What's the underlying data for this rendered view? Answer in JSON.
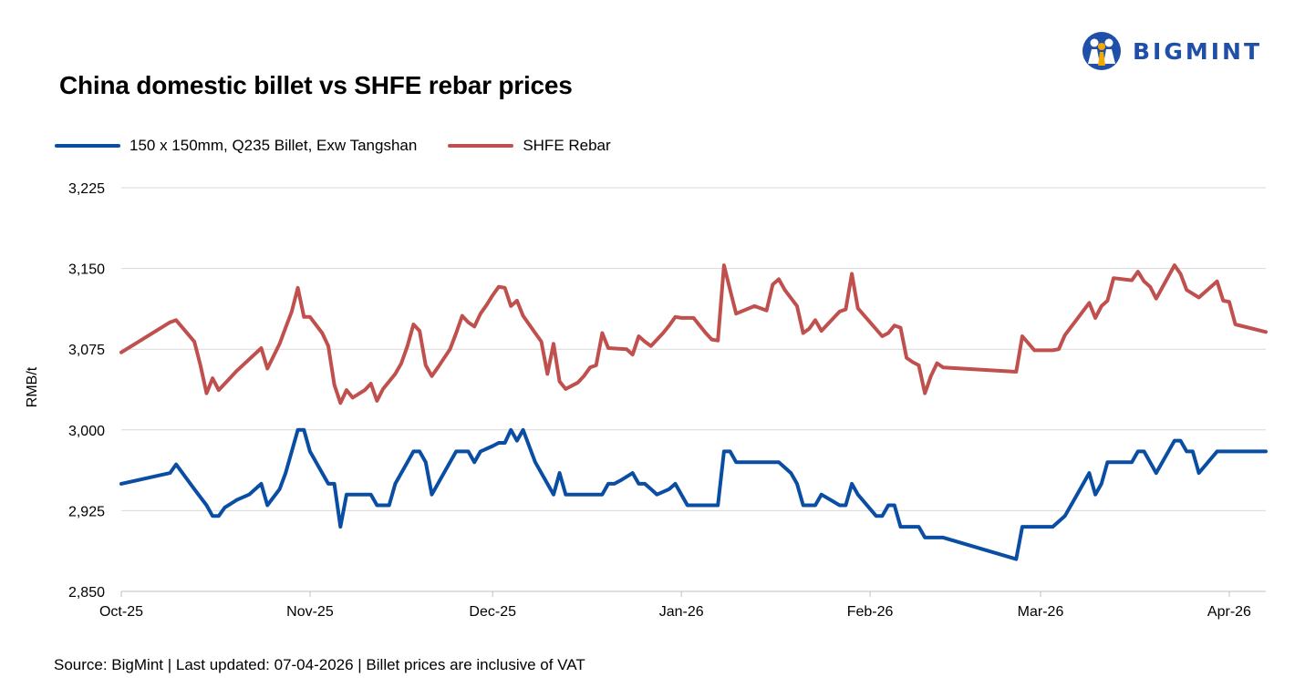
{
  "header": {
    "title": "China domestic billet vs SHFE rebar prices",
    "logo_text": "BIGMINT"
  },
  "legend": {
    "items": [
      {
        "label": "150 x 150mm, Q235 Billet, Exw Tangshan",
        "color": "#0a4ea3"
      },
      {
        "label": "SHFE Rebar",
        "color": "#c0504d"
      }
    ]
  },
  "footer": {
    "source": "Source: BigMint | Last updated: 07-04-2026 | Billet prices are inclusive of VAT"
  },
  "colors": {
    "billet": "#0a4ea3",
    "rebar": "#c0504d",
    "brand": "#1f4fa8",
    "grid": "#d9d9d9"
  },
  "chart_data": {
    "type": "line",
    "ylabel": "RMB/t",
    "xlabel": "",
    "ylim": [
      2850,
      3225
    ],
    "yticks": [
      2850,
      2925,
      3000,
      3075,
      3150,
      3225
    ],
    "ytick_labels": [
      "2,850",
      "2,925",
      "3,000",
      "3,075",
      "3,150",
      "3,225"
    ],
    "xlim": [
      "2025-10-01",
      "2026-04-07"
    ],
    "xticks": [
      "2025-10-01",
      "2025-11-01",
      "2025-12-01",
      "2026-01-01",
      "2026-02-01",
      "2026-03-01",
      "2026-04-01"
    ],
    "xtick_labels": [
      "Oct-25",
      "Nov-25",
      "Dec-25",
      "Jan-26",
      "Feb-26",
      "Mar-26",
      "Apr-26"
    ],
    "grid": true,
    "legend_position": "top-left",
    "series": [
      {
        "name": "150 x 150mm, Q235 Billet, Exw Tangshan",
        "color": "#0a4ea3",
        "points": [
          [
            "2025-10-01",
            2950
          ],
          [
            "2025-10-09",
            2960
          ],
          [
            "2025-10-10",
            2968
          ],
          [
            "2025-10-13",
            2945
          ],
          [
            "2025-10-15",
            2930
          ],
          [
            "2025-10-16",
            2920
          ],
          [
            "2025-10-17",
            2920
          ],
          [
            "2025-10-18",
            2928
          ],
          [
            "2025-10-20",
            2935
          ],
          [
            "2025-10-22",
            2940
          ],
          [
            "2025-10-24",
            2950
          ],
          [
            "2025-10-25",
            2930
          ],
          [
            "2025-10-27",
            2945
          ],
          [
            "2025-10-28",
            2960
          ],
          [
            "2025-10-29",
            2980
          ],
          [
            "2025-10-30",
            3000
          ],
          [
            "2025-10-31",
            3000
          ],
          [
            "2025-11-01",
            2980
          ],
          [
            "2025-11-03",
            2960
          ],
          [
            "2025-11-04",
            2950
          ],
          [
            "2025-11-05",
            2950
          ],
          [
            "2025-11-06",
            2910
          ],
          [
            "2025-11-07",
            2940
          ],
          [
            "2025-11-10",
            2940
          ],
          [
            "2025-11-11",
            2940
          ],
          [
            "2025-11-12",
            2930
          ],
          [
            "2025-11-14",
            2930
          ],
          [
            "2025-11-15",
            2950
          ],
          [
            "2025-11-17",
            2970
          ],
          [
            "2025-11-18",
            2980
          ],
          [
            "2025-11-19",
            2980
          ],
          [
            "2025-11-20",
            2970
          ],
          [
            "2025-11-21",
            2940
          ],
          [
            "2025-11-24",
            2970
          ],
          [
            "2025-11-25",
            2980
          ],
          [
            "2025-11-27",
            2980
          ],
          [
            "2025-11-28",
            2970
          ],
          [
            "2025-11-29",
            2980
          ],
          [
            "2025-12-01",
            2985
          ],
          [
            "2025-12-02",
            2988
          ],
          [
            "2025-12-03",
            2988
          ],
          [
            "2025-12-04",
            3000
          ],
          [
            "2025-12-05",
            2990
          ],
          [
            "2025-12-06",
            3000
          ],
          [
            "2025-12-08",
            2970
          ],
          [
            "2025-12-10",
            2950
          ],
          [
            "2025-12-11",
            2940
          ],
          [
            "2025-12-12",
            2960
          ],
          [
            "2025-12-13",
            2940
          ],
          [
            "2025-12-15",
            2940
          ],
          [
            "2025-12-18",
            2940
          ],
          [
            "2025-12-19",
            2940
          ],
          [
            "2025-12-20",
            2950
          ],
          [
            "2025-12-21",
            2950
          ],
          [
            "2025-12-22",
            2953
          ],
          [
            "2025-12-24",
            2960
          ],
          [
            "2025-12-25",
            2950
          ],
          [
            "2025-12-26",
            2950
          ],
          [
            "2025-12-27",
            2945
          ],
          [
            "2025-12-28",
            2940
          ],
          [
            "2025-12-30",
            2945
          ],
          [
            "2025-12-31",
            2950
          ],
          [
            "2026-01-01",
            2940
          ],
          [
            "2026-01-02",
            2930
          ],
          [
            "2026-01-05",
            2930
          ],
          [
            "2026-01-07",
            2930
          ],
          [
            "2026-01-08",
            2980
          ],
          [
            "2026-01-09",
            2980
          ],
          [
            "2026-01-10",
            2970
          ],
          [
            "2026-01-13",
            2970
          ],
          [
            "2026-01-17",
            2970
          ],
          [
            "2026-01-19",
            2960
          ],
          [
            "2026-01-20",
            2950
          ],
          [
            "2026-01-21",
            2930
          ],
          [
            "2026-01-23",
            2930
          ],
          [
            "2026-01-24",
            2940
          ],
          [
            "2026-01-27",
            2930
          ],
          [
            "2026-01-28",
            2930
          ],
          [
            "2026-01-29",
            2950
          ],
          [
            "2026-01-30",
            2940
          ],
          [
            "2026-02-02",
            2920
          ],
          [
            "2026-02-03",
            2920
          ],
          [
            "2026-02-04",
            2930
          ],
          [
            "2026-02-05",
            2930
          ],
          [
            "2026-02-06",
            2910
          ],
          [
            "2026-02-09",
            2910
          ],
          [
            "2026-02-10",
            2900
          ],
          [
            "2026-02-13",
            2900
          ],
          [
            "2026-02-25",
            2880
          ],
          [
            "2026-02-26",
            2910
          ],
          [
            "2026-03-03",
            2910
          ],
          [
            "2026-03-05",
            2920
          ],
          [
            "2026-03-07",
            2940
          ],
          [
            "2026-03-09",
            2960
          ],
          [
            "2026-03-10",
            2940
          ],
          [
            "2026-03-11",
            2950
          ],
          [
            "2026-03-12",
            2970
          ],
          [
            "2026-03-16",
            2970
          ],
          [
            "2026-03-17",
            2980
          ],
          [
            "2026-03-18",
            2980
          ],
          [
            "2026-03-20",
            2960
          ],
          [
            "2026-03-23",
            2990
          ],
          [
            "2026-03-24",
            2990
          ],
          [
            "2026-03-25",
            2980
          ],
          [
            "2026-03-26",
            2980
          ],
          [
            "2026-03-27",
            2960
          ],
          [
            "2026-03-30",
            2980
          ],
          [
            "2026-04-02",
            2980
          ],
          [
            "2026-04-07",
            2980
          ]
        ]
      },
      {
        "name": "SHFE Rebar",
        "color": "#c0504d",
        "points": [
          [
            "2025-10-01",
            3072
          ],
          [
            "2025-10-09",
            3100
          ],
          [
            "2025-10-10",
            3102
          ],
          [
            "2025-10-13",
            3082
          ],
          [
            "2025-10-14",
            3060
          ],
          [
            "2025-10-15",
            3034
          ],
          [
            "2025-10-16",
            3048
          ],
          [
            "2025-10-17",
            3037
          ],
          [
            "2025-10-20",
            3055
          ],
          [
            "2025-10-24",
            3076
          ],
          [
            "2025-10-25",
            3057
          ],
          [
            "2025-10-27",
            3080
          ],
          [
            "2025-10-28",
            3095
          ],
          [
            "2025-10-29",
            3110
          ],
          [
            "2025-10-30",
            3132
          ],
          [
            "2025-10-31",
            3105
          ],
          [
            "2025-11-01",
            3105
          ],
          [
            "2025-11-03",
            3090
          ],
          [
            "2025-11-04",
            3078
          ],
          [
            "2025-11-05",
            3042
          ],
          [
            "2025-11-06",
            3025
          ],
          [
            "2025-11-07",
            3037
          ],
          [
            "2025-11-08",
            3030
          ],
          [
            "2025-11-10",
            3037
          ],
          [
            "2025-11-11",
            3043
          ],
          [
            "2025-11-12",
            3027
          ],
          [
            "2025-11-13",
            3038
          ],
          [
            "2025-11-15",
            3052
          ],
          [
            "2025-11-16",
            3062
          ],
          [
            "2025-11-17",
            3078
          ],
          [
            "2025-11-18",
            3098
          ],
          [
            "2025-11-19",
            3092
          ],
          [
            "2025-11-20",
            3060
          ],
          [
            "2025-11-21",
            3050
          ],
          [
            "2025-11-22",
            3058
          ],
          [
            "2025-11-24",
            3075
          ],
          [
            "2025-11-25",
            3090
          ],
          [
            "2025-11-26",
            3106
          ],
          [
            "2025-11-27",
            3100
          ],
          [
            "2025-11-28",
            3096
          ],
          [
            "2025-11-29",
            3108
          ],
          [
            "2025-11-30",
            3116
          ],
          [
            "2025-12-01",
            3125
          ],
          [
            "2025-12-02",
            3133
          ],
          [
            "2025-12-03",
            3132
          ],
          [
            "2025-12-04",
            3115
          ],
          [
            "2025-12-05",
            3120
          ],
          [
            "2025-12-06",
            3106
          ],
          [
            "2025-12-08",
            3090
          ],
          [
            "2025-12-09",
            3082
          ],
          [
            "2025-12-10",
            3052
          ],
          [
            "2025-12-11",
            3080
          ],
          [
            "2025-12-12",
            3045
          ],
          [
            "2025-12-13",
            3038
          ],
          [
            "2025-12-15",
            3044
          ],
          [
            "2025-12-16",
            3050
          ],
          [
            "2025-12-17",
            3058
          ],
          [
            "2025-12-18",
            3060
          ],
          [
            "2025-12-19",
            3090
          ],
          [
            "2025-12-20",
            3076
          ],
          [
            "2025-12-23",
            3075
          ],
          [
            "2025-12-24",
            3070
          ],
          [
            "2025-12-25",
            3087
          ],
          [
            "2025-12-26",
            3082
          ],
          [
            "2025-12-27",
            3078
          ],
          [
            "2025-12-29",
            3090
          ],
          [
            "2025-12-30",
            3097
          ],
          [
            "2025-12-31",
            3105
          ],
          [
            "2026-01-01",
            3104
          ],
          [
            "2026-01-03",
            3104
          ],
          [
            "2026-01-05",
            3090
          ],
          [
            "2026-01-06",
            3084
          ],
          [
            "2026-01-07",
            3083
          ],
          [
            "2026-01-08",
            3153
          ],
          [
            "2026-01-09",
            3130
          ],
          [
            "2026-01-10",
            3108
          ],
          [
            "2026-01-13",
            3115
          ],
          [
            "2026-01-14",
            3113
          ],
          [
            "2026-01-15",
            3111
          ],
          [
            "2026-01-16",
            3135
          ],
          [
            "2026-01-17",
            3140
          ],
          [
            "2026-01-18",
            3130
          ],
          [
            "2026-01-20",
            3115
          ],
          [
            "2026-01-21",
            3090
          ],
          [
            "2026-01-22",
            3094
          ],
          [
            "2026-01-23",
            3102
          ],
          [
            "2026-01-24",
            3092
          ],
          [
            "2026-01-27",
            3110
          ],
          [
            "2026-01-28",
            3112
          ],
          [
            "2026-01-29",
            3145
          ],
          [
            "2026-01-30",
            3113
          ],
          [
            "2026-02-01",
            3100
          ],
          [
            "2026-02-03",
            3087
          ],
          [
            "2026-02-04",
            3090
          ],
          [
            "2026-02-05",
            3097
          ],
          [
            "2026-02-06",
            3095
          ],
          [
            "2026-02-07",
            3067
          ],
          [
            "2026-02-08",
            3063
          ],
          [
            "2026-02-09",
            3060
          ],
          [
            "2026-02-10",
            3034
          ],
          [
            "2026-02-11",
            3050
          ],
          [
            "2026-02-12",
            3062
          ],
          [
            "2026-02-13",
            3058
          ],
          [
            "2026-02-25",
            3054
          ],
          [
            "2026-02-26",
            3087
          ],
          [
            "2026-02-28",
            3074
          ],
          [
            "2026-03-03",
            3074
          ],
          [
            "2026-03-04",
            3075
          ],
          [
            "2026-03-05",
            3088
          ],
          [
            "2026-03-09",
            3118
          ],
          [
            "2026-03-10",
            3104
          ],
          [
            "2026-03-11",
            3115
          ],
          [
            "2026-03-12",
            3120
          ],
          [
            "2026-03-13",
            3141
          ],
          [
            "2026-03-16",
            3139
          ],
          [
            "2026-03-17",
            3147
          ],
          [
            "2026-03-18",
            3138
          ],
          [
            "2026-03-19",
            3133
          ],
          [
            "2026-03-20",
            3122
          ],
          [
            "2026-03-23",
            3153
          ],
          [
            "2026-03-24",
            3145
          ],
          [
            "2026-03-25",
            3130
          ],
          [
            "2026-03-27",
            3123
          ],
          [
            "2026-03-30",
            3138
          ],
          [
            "2026-03-31",
            3120
          ],
          [
            "2026-04-01",
            3119
          ],
          [
            "2026-04-02",
            3098
          ],
          [
            "2026-04-07",
            3091
          ]
        ]
      }
    ]
  }
}
